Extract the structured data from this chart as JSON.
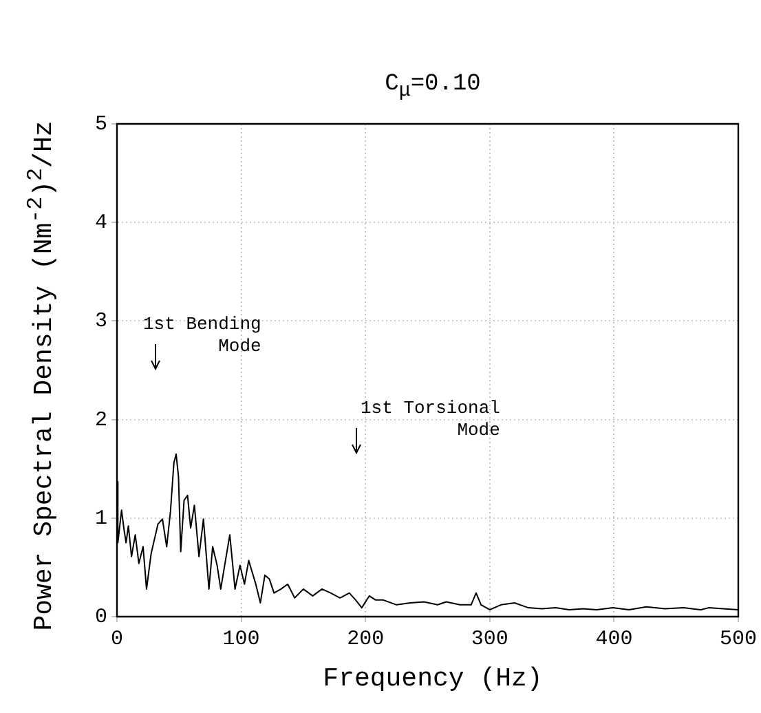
{
  "chart_data": {
    "type": "line",
    "title": "C$_{μ}$=0.10",
    "xlabel": "Frequency (Hz)",
    "ylabel": "Power Spectral Density (Nm$^{-2}$)$^{2}$/Hz",
    "xlim": [
      0,
      500
    ],
    "xticks": [
      0,
      100,
      200,
      300,
      400,
      500
    ],
    "ylim": [
      0,
      5
    ],
    "yticks": [
      0,
      1,
      2,
      3,
      4,
      5
    ],
    "grid": true,
    "marker": "none",
    "line_style": "solid",
    "annotations": [
      "1st Bending\nMode",
      "1st Torsional\nMode"
    ],
    "series": [
      {
        "color": "#000000",
        "x": [
          0,
          0.7,
          3.7,
          5.5,
          7.3,
          9.2,
          11.7,
          14.7,
          17.6,
          21,
          23.8,
          27.5,
          33,
          36.6,
          40,
          43,
          45.8,
          47.6,
          49.5,
          51.3,
          54,
          56.8,
          59.3,
          62.3,
          66,
          69.6,
          74,
          77,
          80.6,
          83.5,
          86,
          90.8,
          95,
          99,
          102.6,
          106,
          111.7,
          115.4,
          119,
          122.7,
          126.4,
          132,
          137.4,
          143,
          150,
          157.5,
          165,
          172,
          179.5,
          187,
          192,
          197,
          203,
          208,
          214,
          225,
          236,
          247,
          258,
          265,
          276,
          285,
          289,
          293,
          300,
          309,
          320,
          331,
          342,
          353,
          364,
          375,
          386,
          399,
          412,
          426,
          441,
          456,
          470,
          476,
          500
        ],
        "values": [
          1.37,
          0.75,
          1.08,
          0.9,
          0.75,
          0.92,
          0.61,
          0.83,
          0.54,
          0.71,
          0.28,
          0.64,
          0.94,
          0.99,
          0.71,
          1.06,
          1.56,
          1.65,
          1.42,
          0.66,
          1.18,
          1.23,
          0.9,
          1.13,
          0.61,
          0.99,
          0.28,
          0.71,
          0.52,
          0.28,
          0.47,
          0.83,
          0.28,
          0.52,
          0.33,
          0.57,
          0.33,
          0.14,
          0.42,
          0.38,
          0.24,
          0.28,
          0.33,
          0.19,
          0.28,
          0.21,
          0.28,
          0.24,
          0.19,
          0.24,
          0.17,
          0.09,
          0.21,
          0.17,
          0.17,
          0.12,
          0.14,
          0.15,
          0.12,
          0.15,
          0.12,
          0.12,
          0.24,
          0.12,
          0.07,
          0.12,
          0.14,
          0.09,
          0.08,
          0.09,
          0.07,
          0.08,
          0.07,
          0.09,
          0.07,
          0.1,
          0.08,
          0.09,
          0.07,
          0.09,
          0.07
        ]
      }
    ]
  }
}
